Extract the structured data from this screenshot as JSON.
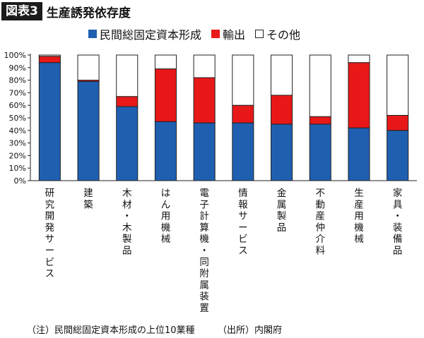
{
  "figure_tag": "図表3",
  "title": "生産誘発依存度",
  "note": "（注）民間総固定資本形成の上位10業種　　　（出所）内閣府",
  "colors": {
    "investment": "#1f5fb0",
    "export": "#e81818",
    "other": "#ffffff",
    "edge": "#222222"
  },
  "chart_data": {
    "type": "bar",
    "stacked": true,
    "title": "生産誘発依存度",
    "y_ticks": [
      "0%",
      "10%",
      "20%",
      "30%",
      "40%",
      "50%",
      "60%",
      "70%",
      "80%",
      "90%",
      "100%"
    ],
    "ylim": [
      0,
      100
    ],
    "legend_position": "top",
    "categories": [
      "研究開発サービス",
      "建築",
      "木材・木製品",
      "はん用機械",
      "電子計算機・同附属装置",
      "情報サービス",
      "金属製品",
      "不動産仲介料",
      "生産用機械",
      "家具・装備品"
    ],
    "series": [
      {
        "name": "民間総固定資本形成",
        "color": "#1f5fb0",
        "values": [
          94,
          79,
          59,
          47,
          46,
          46,
          45,
          45,
          42,
          40
        ]
      },
      {
        "name": "輸出",
        "color": "#e81818",
        "values": [
          5,
          1,
          8,
          42,
          36,
          14,
          23,
          6,
          52,
          12
        ]
      },
      {
        "name": "その他",
        "color": "#ffffff",
        "values": [
          1,
          20,
          33,
          11,
          18,
          40,
          32,
          49,
          6,
          48
        ]
      }
    ]
  }
}
